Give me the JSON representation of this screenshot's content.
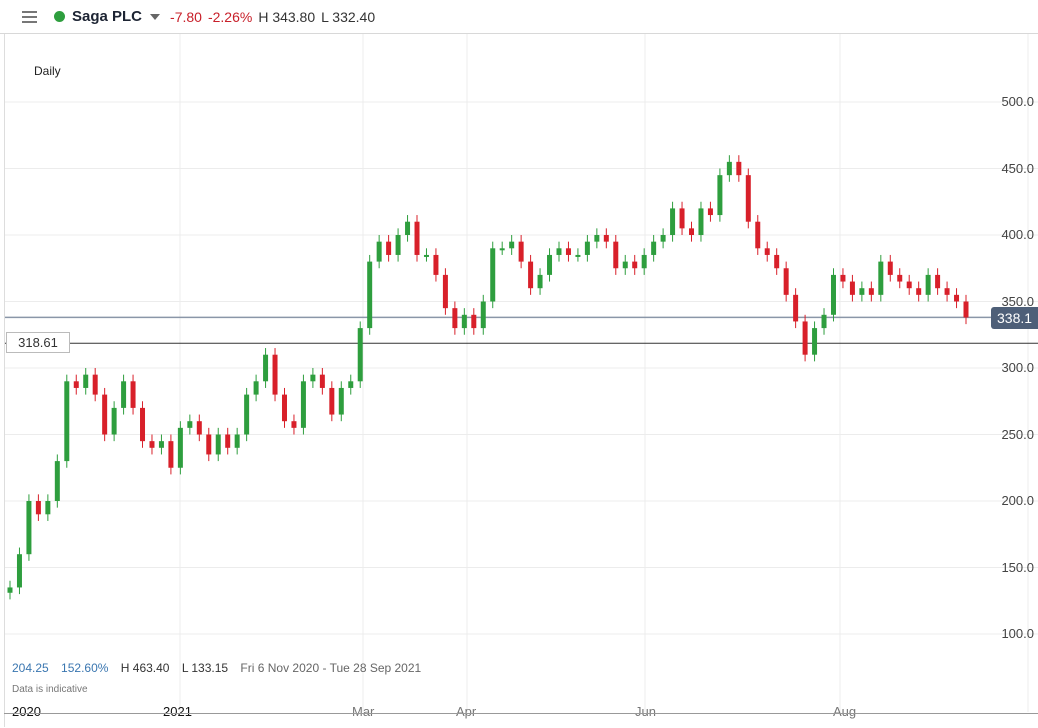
{
  "header": {
    "instrument": "Saga PLC",
    "status_color": "#2e9e3e",
    "change": "-7.80",
    "change_pct": "-2.26%",
    "high": "H 343.80",
    "low": "L 332.40"
  },
  "interval_label": "Daily",
  "stats": {
    "change": "204.25",
    "change_pct": "152.60%",
    "high": "H 463.40",
    "low": "L 133.15",
    "range": "Fri 6 Nov 2020 - Tue 28 Sep 2021",
    "disclaimer": "Data is indicative"
  },
  "current_price_label": "338.1",
  "reference_price_label": "318.61",
  "chart_data": {
    "type": "candlestick",
    "title": "",
    "up_color": "#2e9e3e",
    "down_color": "#d8202a",
    "ylim": [
      80,
      515
    ],
    "grid": true,
    "y_ticks": [
      "500.0",
      "450.0",
      "400.0",
      "350.0",
      "300.0",
      "250.0",
      "200.0",
      "150.0",
      "100.0"
    ],
    "y_tick_values": [
      500,
      450,
      400,
      350,
      300,
      250,
      200,
      150,
      100
    ],
    "x_ticks": [
      "2020",
      "2021",
      "Mar",
      "Apr",
      "Jun",
      "Aug"
    ],
    "current_price": 338.1,
    "reference_price": 318.61,
    "close": [
      135,
      160,
      200,
      190,
      200,
      230,
      290,
      285,
      295,
      280,
      250,
      270,
      290,
      270,
      245,
      240,
      245,
      225,
      255,
      260,
      250,
      235,
      250,
      240,
      250,
      280,
      290,
      310,
      280,
      260,
      255,
      290,
      295,
      285,
      265,
      285,
      290,
      330,
      380,
      395,
      385,
      400,
      410,
      385,
      385,
      370,
      345,
      330,
      340,
      330,
      350,
      390,
      390,
      395,
      380,
      360,
      370,
      385,
      390,
      385,
      385,
      395,
      400,
      395,
      375,
      380,
      375,
      385,
      395,
      400,
      420,
      405,
      400,
      420,
      415,
      445,
      455,
      445,
      410,
      390,
      385,
      375,
      355,
      335,
      310,
      330,
      340,
      370,
      365,
      355,
      360,
      355,
      380,
      370,
      365,
      360,
      355,
      370,
      360,
      355,
      350,
      338
    ]
  }
}
